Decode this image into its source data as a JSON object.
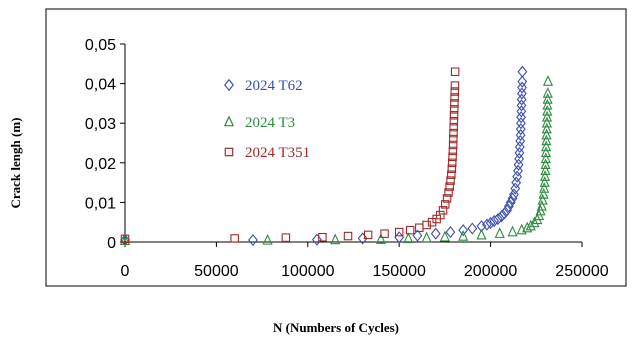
{
  "chart_data": {
    "type": "scatter",
    "title": "",
    "xlabel": "N (Numbers of Cycles)",
    "ylabel": "Crack lengh (m)",
    "xlim": [
      0,
      250000
    ],
    "ylim": [
      0,
      0.05
    ],
    "x_ticks": [
      0,
      50000,
      100000,
      150000,
      200000,
      250000
    ],
    "x_tick_labels": [
      "0",
      "50000",
      "100000",
      "150000",
      "200000",
      "250000"
    ],
    "y_ticks": [
      0,
      0.01,
      0.02,
      0.03,
      0.04,
      0.05
    ],
    "y_tick_labels": [
      "0",
      "0,01",
      "0,02",
      "0,03",
      "0,04",
      "0,05"
    ],
    "grid": false,
    "legend_position": "upper-left inside plot",
    "series": [
      {
        "name": "2024 T62",
        "marker": "diamond",
        "color": "#3a4fb0",
        "points": [
          [
            0,
            0.0005
          ],
          [
            70000,
            0.0005
          ],
          [
            105000,
            0.0006
          ],
          [
            130000,
            0.0009
          ],
          [
            150000,
            0.0012
          ],
          [
            160000,
            0.0016
          ],
          [
            170000,
            0.0021
          ],
          [
            178000,
            0.0025
          ],
          [
            185000,
            0.003
          ],
          [
            190000,
            0.0034
          ],
          [
            195000,
            0.004
          ],
          [
            198000,
            0.0044
          ],
          [
            200000,
            0.0048
          ],
          [
            202000,
            0.0053
          ],
          [
            204000,
            0.0058
          ],
          [
            206000,
            0.0065
          ],
          [
            207500,
            0.0072
          ],
          [
            209000,
            0.008
          ],
          [
            210000,
            0.009
          ],
          [
            211000,
            0.01
          ],
          [
            212000,
            0.011
          ],
          [
            212800,
            0.012
          ],
          [
            213500,
            0.0135
          ],
          [
            214000,
            0.015
          ],
          [
            214500,
            0.0165
          ],
          [
            215000,
            0.018
          ],
          [
            215300,
            0.0195
          ],
          [
            215600,
            0.021
          ],
          [
            215800,
            0.0225
          ],
          [
            216000,
            0.024
          ],
          [
            216200,
            0.0255
          ],
          [
            216400,
            0.027
          ],
          [
            216500,
            0.0285
          ],
          [
            216600,
            0.03
          ],
          [
            216700,
            0.0315
          ],
          [
            216800,
            0.033
          ],
          [
            216900,
            0.0345
          ],
          [
            217000,
            0.036
          ],
          [
            217100,
            0.0375
          ],
          [
            217200,
            0.039
          ],
          [
            217300,
            0.0405
          ],
          [
            217400,
            0.043
          ]
        ]
      },
      {
        "name": "2024 T3",
        "marker": "triangle",
        "color": "#2e8b3e",
        "points": [
          [
            0,
            0.0003
          ],
          [
            78000,
            0.0004
          ],
          [
            115000,
            0.0005
          ],
          [
            140000,
            0.0006
          ],
          [
            155000,
            0.0008
          ],
          [
            165000,
            0.001
          ],
          [
            175000,
            0.0012
          ],
          [
            185000,
            0.0014
          ],
          [
            195000,
            0.0017
          ],
          [
            205000,
            0.0021
          ],
          [
            212000,
            0.0025
          ],
          [
            217000,
            0.003
          ],
          [
            220000,
            0.0035
          ],
          [
            222000,
            0.004
          ],
          [
            224000,
            0.0048
          ],
          [
            225500,
            0.0056
          ],
          [
            226500,
            0.0066
          ],
          [
            227300,
            0.0078
          ],
          [
            228000,
            0.009
          ],
          [
            228500,
            0.0105
          ],
          [
            229000,
            0.012
          ],
          [
            229300,
            0.0135
          ],
          [
            229600,
            0.015
          ],
          [
            229800,
            0.0165
          ],
          [
            230000,
            0.018
          ],
          [
            230100,
            0.0195
          ],
          [
            230200,
            0.021
          ],
          [
            230300,
            0.0225
          ],
          [
            230400,
            0.024
          ],
          [
            230500,
            0.0255
          ],
          [
            230600,
            0.027
          ],
          [
            230700,
            0.0285
          ],
          [
            230800,
            0.03
          ],
          [
            230900,
            0.0315
          ],
          [
            231000,
            0.033
          ],
          [
            231100,
            0.0345
          ],
          [
            231200,
            0.036
          ],
          [
            231300,
            0.0375
          ],
          [
            231400,
            0.0405
          ]
        ]
      },
      {
        "name": "2024 T351",
        "marker": "square",
        "color": "#a02a2a",
        "points": [
          [
            0,
            0.0008
          ],
          [
            60000,
            0.0009
          ],
          [
            88000,
            0.0011
          ],
          [
            108000,
            0.0012
          ],
          [
            122000,
            0.0015
          ],
          [
            133000,
            0.0018
          ],
          [
            142000,
            0.0021
          ],
          [
            150000,
            0.0025
          ],
          [
            156000,
            0.003
          ],
          [
            161000,
            0.0036
          ],
          [
            165000,
            0.0043
          ],
          [
            168000,
            0.005
          ],
          [
            170500,
            0.0058
          ],
          [
            172500,
            0.0068
          ],
          [
            174000,
            0.008
          ],
          [
            175200,
            0.0095
          ],
          [
            176200,
            0.011
          ],
          [
            177000,
            0.0125
          ],
          [
            177600,
            0.014
          ],
          [
            178100,
            0.0155
          ],
          [
            178500,
            0.017
          ],
          [
            178800,
            0.0185
          ],
          [
            179000,
            0.02
          ],
          [
            179200,
            0.0215
          ],
          [
            179400,
            0.023
          ],
          [
            179500,
            0.0245
          ],
          [
            179600,
            0.026
          ],
          [
            179700,
            0.0275
          ],
          [
            179800,
            0.029
          ],
          [
            179900,
            0.0305
          ],
          [
            180000,
            0.032
          ],
          [
            180100,
            0.0335
          ],
          [
            180200,
            0.035
          ],
          [
            180300,
            0.0365
          ],
          [
            180400,
            0.038
          ],
          [
            180500,
            0.0395
          ],
          [
            180600,
            0.043
          ]
        ]
      }
    ]
  }
}
